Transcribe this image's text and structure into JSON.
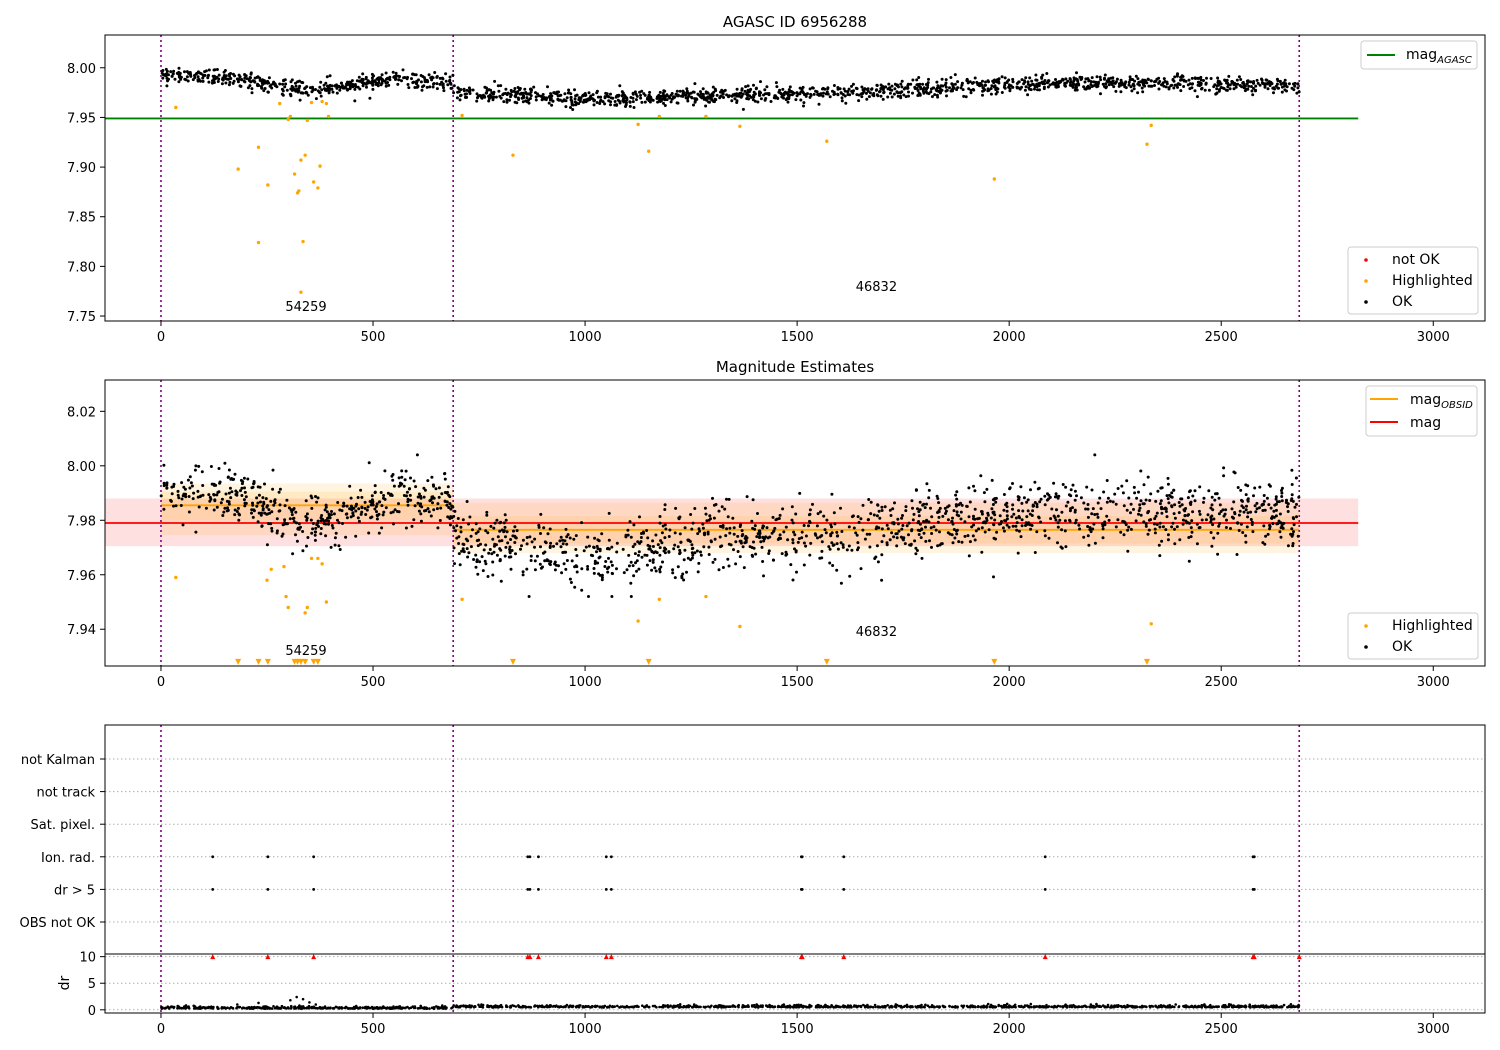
{
  "chart_data": [
    {
      "type": "scatter",
      "title": "AGASC ID 6956288",
      "xlim": [
        -132,
        3122
      ],
      "ylim": [
        7.745,
        8.033
      ],
      "xticks": [
        0,
        500,
        1000,
        1500,
        2000,
        2500,
        3000
      ],
      "yticks": [
        7.75,
        7.8,
        7.85,
        7.9,
        7.95,
        8.0
      ],
      "ytick_labels": [
        "7.75",
        "7.80",
        "7.85",
        "7.90",
        "7.95",
        "8.00"
      ],
      "obsid_boundaries": [
        0,
        689,
        2684
      ],
      "obsid_labels": [
        {
          "text": "54259",
          "x": 342,
          "y": 7.755
        },
        {
          "text": "46832",
          "x": 1687,
          "y": 7.775
        }
      ],
      "hlines": [
        {
          "name": "mag_AGASC",
          "y": 7.949,
          "x0": -132,
          "x1": 2823,
          "color": "#008000"
        }
      ],
      "legends": [
        {
          "name": "mag",
          "subscript": "AGASC",
          "color": "#008000",
          "style": "line"
        }
      ],
      "legend_points": [
        {
          "name": "not OK",
          "color": "#ff0000"
        },
        {
          "name": "Highlighted",
          "color": "#ffa500"
        },
        {
          "name": "OK",
          "color": "#000000"
        }
      ],
      "ok_segments": [
        {
          "x0": 0,
          "x1": 689,
          "trend": [
            [
              0,
              7.993
            ],
            [
              150,
              7.991
            ],
            [
              250,
              7.985
            ],
            [
              330,
              7.978
            ],
            [
              400,
              7.98
            ],
            [
              550,
              7.989
            ],
            [
              689,
              7.984
            ]
          ],
          "noise": 0.004
        },
        {
          "x0": 689,
          "x1": 2684,
          "trend": [
            [
              689,
              7.975
            ],
            [
              850,
              7.971
            ],
            [
              1100,
              7.969
            ],
            [
              1400,
              7.974
            ],
            [
              1600,
              7.974
            ],
            [
              1800,
              7.979
            ],
            [
              2100,
              7.985
            ],
            [
              2684,
              7.983
            ]
          ],
          "noise": 0.004
        }
      ],
      "ok_count": 1800,
      "ok_color": "#000000",
      "highlighted": {
        "color": "#ffa500",
        "points": [
          [
            35,
            7.96
          ],
          [
            182,
            7.898
          ],
          [
            230,
            7.92
          ],
          [
            230,
            7.824
          ],
          [
            252,
            7.882
          ],
          [
            280,
            7.964
          ],
          [
            300,
            7.948
          ],
          [
            305,
            7.951
          ],
          [
            315,
            7.893
          ],
          [
            322,
            7.874
          ],
          [
            325,
            7.876
          ],
          [
            330,
            7.774
          ],
          [
            330,
            7.907
          ],
          [
            335,
            7.825
          ],
          [
            340,
            7.912
          ],
          [
            345,
            7.947
          ],
          [
            355,
            7.965
          ],
          [
            360,
            7.885
          ],
          [
            370,
            7.879
          ],
          [
            375,
            7.901
          ],
          [
            380,
            7.966
          ],
          [
            390,
            7.964
          ],
          [
            395,
            7.951
          ],
          [
            710,
            7.952
          ],
          [
            830,
            7.912
          ],
          [
            1125,
            7.943
          ],
          [
            1150,
            7.916
          ],
          [
            1175,
            7.951
          ],
          [
            1285,
            7.951
          ],
          [
            1365,
            7.941
          ],
          [
            1570,
            7.926
          ],
          [
            1965,
            7.888
          ],
          [
            2325,
            7.923
          ],
          [
            2335,
            7.942
          ]
        ]
      }
    },
    {
      "type": "scatter",
      "title": "Magnitude Estimates",
      "xlim": [
        -132,
        3122
      ],
      "ylim": [
        7.9265,
        8.0315
      ],
      "xticks": [
        0,
        500,
        1000,
        1500,
        2000,
        2500,
        3000
      ],
      "yticks": [
        7.94,
        7.96,
        7.98,
        8.0,
        8.02
      ],
      "ytick_labels": [
        "7.94",
        "7.96",
        "7.98",
        "8.00",
        "8.02"
      ],
      "obsid_boundaries": [
        0,
        689,
        2684
      ],
      "obsid_labels": [
        {
          "text": "54259",
          "x": 342,
          "y": 7.9305
        },
        {
          "text": "46832",
          "x": 1687,
          "y": 7.9375
        }
      ],
      "bands": [
        {
          "name": "mag",
          "x0": -132,
          "x1": 2823,
          "lo": 7.9705,
          "hi": 7.988,
          "color": "#ff0000",
          "opacity": 0.12
        },
        {
          "name": "mag_OBSID_1",
          "x0": 0,
          "x1": 689,
          "lo": 7.9745,
          "hi": 7.9935,
          "color": "#ffa500",
          "opacity": 0.12
        },
        {
          "name": "mag_OBSID_1_inner",
          "x0": 0,
          "x1": 689,
          "lo": 7.98,
          "hi": 7.9905,
          "color": "#ffa500",
          "opacity": 0.12
        },
        {
          "name": "mag_OBSID_2",
          "x0": 689,
          "x1": 2684,
          "lo": 7.968,
          "hi": 7.9865,
          "color": "#ffa500",
          "opacity": 0.12
        },
        {
          "name": "mag_OBSID_2_inner",
          "x0": 689,
          "x1": 2684,
          "lo": 7.9715,
          "hi": 7.9815,
          "color": "#ffa500",
          "opacity": 0.12
        }
      ],
      "hlines": [
        {
          "name": "mag",
          "y": 7.979,
          "x0": -132,
          "x1": 2823,
          "color": "#ff0000"
        },
        {
          "name": "mag_OBSID_1",
          "y": 7.9855,
          "x0": 0,
          "x1": 689,
          "color": "#ffa500"
        },
        {
          "name": "mag_OBSID_2",
          "y": 7.9765,
          "x0": 689,
          "x1": 2684,
          "color": "#ffa500"
        }
      ],
      "legends": [
        {
          "name": "mag",
          "subscript": "OBSID",
          "color": "#ffa500",
          "style": "line"
        },
        {
          "name": "mag",
          "subscript": "",
          "color": "#ff0000",
          "style": "line"
        }
      ],
      "legend_points": [
        {
          "name": "Highlighted",
          "color": "#ffa500"
        },
        {
          "name": "OK",
          "color": "#000000"
        }
      ],
      "ok_segments": [
        {
          "x0": 0,
          "x1": 689,
          "trend": [
            [
              0,
              7.99
            ],
            [
              150,
              7.99
            ],
            [
              250,
              7.984
            ],
            [
              330,
              7.978
            ],
            [
              400,
              7.981
            ],
            [
              550,
              7.989
            ],
            [
              689,
              7.986
            ]
          ],
          "noise": 0.005
        },
        {
          "x0": 689,
          "x1": 2684,
          "trend": [
            [
              689,
              7.974
            ],
            [
              850,
              7.97
            ],
            [
              1000,
              7.966
            ],
            [
              1100,
              7.966
            ],
            [
              1300,
              7.974
            ],
            [
              1600,
              7.974
            ],
            [
              1800,
              7.979
            ],
            [
              2100,
              7.982
            ],
            [
              2400,
              7.983
            ],
            [
              2684,
              7.983
            ]
          ],
          "noise": 0.006
        }
      ],
      "ok_count": 1800,
      "ok_color": "#000000",
      "highlighted": {
        "color": "#ffa500",
        "points": [
          [
            35,
            7.959
          ],
          [
            250,
            7.958
          ],
          [
            260,
            7.962
          ],
          [
            290,
            7.963
          ],
          [
            295,
            7.952
          ],
          [
            300,
            7.948
          ],
          [
            340,
            7.946
          ],
          [
            345,
            7.948
          ],
          [
            355,
            7.966
          ],
          [
            370,
            7.966
          ],
          [
            380,
            7.964
          ],
          [
            390,
            7.95
          ],
          [
            710,
            7.951
          ],
          [
            1125,
            7.943
          ],
          [
            1175,
            7.951
          ],
          [
            1285,
            7.952
          ],
          [
            1365,
            7.941
          ],
          [
            2335,
            7.942
          ]
        ]
      },
      "clipped_markers": {
        "y": 7.928,
        "color": "#ffa500",
        "x": [
          182,
          230,
          252,
          315,
          322,
          330,
          340,
          360,
          370,
          830,
          1150,
          1570,
          1965,
          2325
        ]
      }
    },
    {
      "type": "scatter",
      "title": "",
      "xlim": [
        -132,
        3122
      ],
      "obsid_boundaries": [
        0,
        689,
        2684
      ],
      "flag_rows": [
        "not Kalman",
        "not track",
        "Sat. pixel.",
        "Ion. rad.",
        "dr > 5",
        "OBS not OK"
      ],
      "flag_points": [
        {
          "row": "Ion. rad.",
          "x": [
            122,
            252,
            360,
            865,
            870,
            890,
            1050,
            1062,
            1510,
            1512,
            1610,
            2085,
            2575,
            2578
          ]
        },
        {
          "row": "dr > 5",
          "x": [
            122,
            252,
            360,
            865,
            870,
            890,
            1050,
            1062,
            1510,
            1512,
            1610,
            2085,
            2575,
            2578
          ]
        }
      ],
      "dr_panel": {
        "ylabel": "dr",
        "ylim": [
          -0.6,
          10.5
        ],
        "yticks": [
          0,
          5,
          10
        ],
        "ytick_labels": [
          "0",
          "5",
          "10"
        ],
        "red_markers_y": 10,
        "red_markers_x": [
          122,
          252,
          360,
          865,
          870,
          890,
          1050,
          1062,
          1510,
          1512,
          1610,
          2085,
          2575,
          2578,
          2684
        ],
        "spikes": [
          [
            180,
            1.0
          ],
          [
            230,
            1.3
          ],
          [
            305,
            1.8
          ],
          [
            320,
            2.4
          ],
          [
            335,
            2.0
          ],
          [
            350,
            1.4
          ],
          [
            365,
            1.0
          ]
        ]
      }
    }
  ]
}
